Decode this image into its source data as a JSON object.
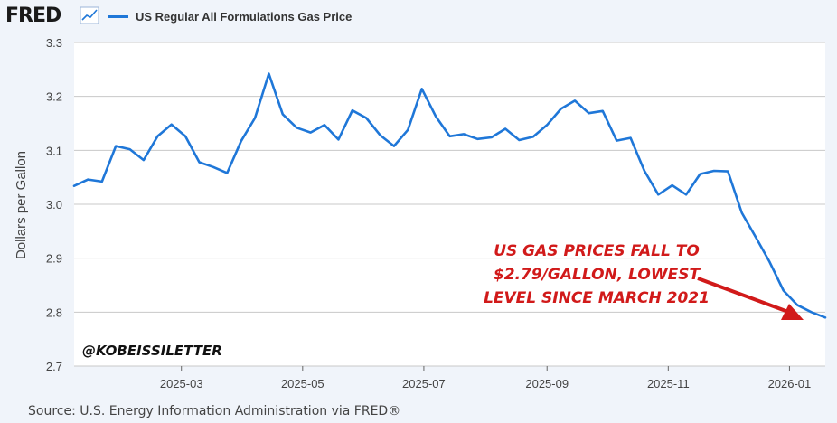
{
  "header": {
    "logo_text": "FRED",
    "legend_label": "US Regular All Formulations Gas Price"
  },
  "source_text": "Source: U.S. Energy Information Administration via FRED®",
  "annotation_lines": [
    "US GAS PRICES FALL TO",
    "$2.79/GALLON, LOWEST",
    "LEVEL SINCE MARCH 2021"
  ],
  "watermark": "@KOBEISSILETTER",
  "colors": {
    "series": "#1f77d8",
    "annotation": "#d11a1a",
    "background": "#f0f4fa",
    "plot": "#ffffff",
    "grid": "#c8c8c8"
  },
  "chart_data": {
    "type": "line",
    "title": "",
    "xlabel": "",
    "ylabel": "Dollars per Gallon",
    "ylim": [
      2.7,
      3.3
    ],
    "yticks": [
      2.7,
      2.8,
      2.9,
      3.0,
      3.1,
      3.2,
      3.3
    ],
    "xlim": [
      "2025-01-06",
      "2026-01-19"
    ],
    "xticks": [
      {
        "date": "2025-03-01",
        "label": "2025-03"
      },
      {
        "date": "2025-05-01",
        "label": "2025-05"
      },
      {
        "date": "2025-07-01",
        "label": "2025-07"
      },
      {
        "date": "2025-09-01",
        "label": "2025-09"
      },
      {
        "date": "2025-11-01",
        "label": "2025-11"
      },
      {
        "date": "2026-01-01",
        "label": "2026-01"
      }
    ],
    "grid": true,
    "legend_position": "top-left",
    "series": [
      {
        "name": "US Regular All Formulations Gas Price",
        "x": [
          "2025-01-06",
          "2025-01-13",
          "2025-01-20",
          "2025-01-27",
          "2025-02-03",
          "2025-02-10",
          "2025-02-17",
          "2025-02-24",
          "2025-03-03",
          "2025-03-10",
          "2025-03-17",
          "2025-03-24",
          "2025-03-31",
          "2025-04-07",
          "2025-04-14",
          "2025-04-21",
          "2025-04-28",
          "2025-05-05",
          "2025-05-12",
          "2025-05-19",
          "2025-05-26",
          "2025-06-02",
          "2025-06-09",
          "2025-06-16",
          "2025-06-23",
          "2025-06-30",
          "2025-07-07",
          "2025-07-14",
          "2025-07-21",
          "2025-07-28",
          "2025-08-04",
          "2025-08-11",
          "2025-08-18",
          "2025-08-25",
          "2025-09-01",
          "2025-09-08",
          "2025-09-15",
          "2025-09-22",
          "2025-09-29",
          "2025-10-06",
          "2025-10-13",
          "2025-10-20",
          "2025-10-27",
          "2025-11-03",
          "2025-11-10",
          "2025-11-17",
          "2025-11-24",
          "2025-12-01",
          "2025-12-08",
          "2025-12-15",
          "2025-12-22",
          "2025-12-29",
          "2026-01-05",
          "2026-01-12",
          "2026-01-19"
        ],
        "values": [
          3.034,
          3.046,
          3.042,
          3.108,
          3.102,
          3.082,
          3.126,
          3.148,
          3.126,
          3.078,
          3.069,
          3.058,
          3.117,
          3.16,
          3.242,
          3.167,
          3.142,
          3.133,
          3.147,
          3.12,
          3.174,
          3.16,
          3.128,
          3.108,
          3.138,
          3.214,
          3.163,
          3.126,
          3.13,
          3.121,
          3.124,
          3.14,
          3.119,
          3.125,
          3.147,
          3.177,
          3.192,
          3.169,
          3.173,
          3.118,
          3.123,
          3.062,
          3.018,
          3.035,
          3.018,
          3.056,
          3.062,
          3.061,
          2.984,
          2.939,
          2.893,
          2.84,
          2.813,
          2.8,
          2.79
        ]
      }
    ]
  }
}
